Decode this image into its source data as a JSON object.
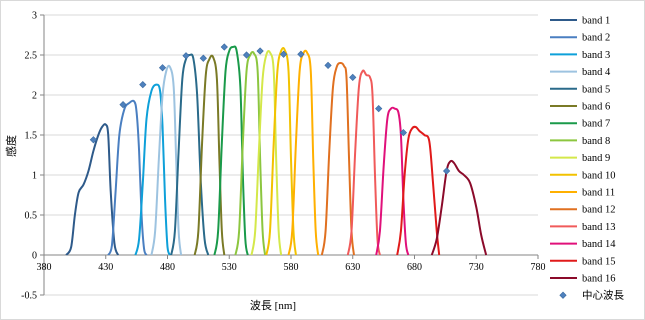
{
  "chart_data": {
    "type": "line",
    "xlabel": "波長 [nm]",
    "ylabel": "感度",
    "xlim": [
      380,
      780
    ],
    "ylim": [
      -0.5,
      3
    ],
    "x_ticks": [
      380,
      430,
      480,
      530,
      580,
      630,
      680,
      730,
      780
    ],
    "y_ticks": [
      -0.5,
      0,
      0.5,
      1,
      1.5,
      2,
      2.5,
      3
    ],
    "grid": "horizontal",
    "legend_position": "right",
    "series": [
      {
        "name": "band 1",
        "color": "#2e5a8a",
        "points": [
          [
            398,
            0
          ],
          [
            402,
            0.1
          ],
          [
            405,
            0.5
          ],
          [
            408,
            0.78
          ],
          [
            412,
            0.88
          ],
          [
            416,
            1.05
          ],
          [
            420,
            1.3
          ],
          [
            424,
            1.5
          ],
          [
            427,
            1.6
          ],
          [
            430,
            1.63
          ],
          [
            432,
            1.5
          ],
          [
            434,
            0.8
          ],
          [
            437,
            0.15
          ],
          [
            440,
            0
          ]
        ]
      },
      {
        "name": "band 2",
        "color": "#4a7fc1",
        "points": [
          [
            432,
            0
          ],
          [
            435,
            0.12
          ],
          [
            438,
            0.8
          ],
          [
            441,
            1.5
          ],
          [
            445,
            1.82
          ],
          [
            449,
            1.9
          ],
          [
            453,
            1.92
          ],
          [
            455,
            1.78
          ],
          [
            457,
            1.3
          ],
          [
            459,
            0.5
          ],
          [
            461,
            0.08
          ],
          [
            463,
            0
          ]
        ]
      },
      {
        "name": "band 3",
        "color": "#0ea0d9",
        "points": [
          [
            454,
            0
          ],
          [
            457,
            0.2
          ],
          [
            460,
            0.9
          ],
          [
            463,
            1.7
          ],
          [
            467,
            2.05
          ],
          [
            471,
            2.13
          ],
          [
            474,
            2.05
          ],
          [
            476,
            1.6
          ],
          [
            478,
            0.7
          ],
          [
            480,
            0.1
          ],
          [
            482,
            0
          ]
        ]
      },
      {
        "name": "band 4",
        "color": "#9dc3e0",
        "points": [
          [
            467,
            0
          ],
          [
            470,
            0.3
          ],
          [
            473,
            1.2
          ],
          [
            476,
            2.0
          ],
          [
            479,
            2.3
          ],
          [
            482,
            2.35
          ],
          [
            485,
            2.1
          ],
          [
            487,
            1.2
          ],
          [
            489,
            0.3
          ],
          [
            491,
            0
          ]
        ]
      },
      {
        "name": "band 5",
        "color": "#2a6a8a",
        "points": [
          [
            483,
            0
          ],
          [
            486,
            0.3
          ],
          [
            489,
            1.3
          ],
          [
            492,
            2.2
          ],
          [
            495,
            2.45
          ],
          [
            498,
            2.5
          ],
          [
            501,
            2.45
          ],
          [
            504,
            2.0
          ],
          [
            507,
            0.9
          ],
          [
            510,
            0.2
          ],
          [
            513,
            0
          ]
        ]
      },
      {
        "name": "band 6",
        "color": "#7a7a26",
        "points": [
          [
            502,
            0
          ],
          [
            505,
            0.3
          ],
          [
            508,
            1.4
          ],
          [
            511,
            2.25
          ],
          [
            514,
            2.45
          ],
          [
            517,
            2.47
          ],
          [
            520,
            2.2
          ],
          [
            522,
            1.2
          ],
          [
            524,
            0.3
          ],
          [
            526,
            0
          ]
        ]
      },
      {
        "name": "band 7",
        "color": "#1a9a4a",
        "points": [
          [
            518,
            0
          ],
          [
            521,
            0.3
          ],
          [
            524,
            1.4
          ],
          [
            527,
            2.3
          ],
          [
            530,
            2.55
          ],
          [
            533,
            2.6
          ],
          [
            536,
            2.55
          ],
          [
            539,
            2.1
          ],
          [
            541,
            1.0
          ],
          [
            543,
            0.2
          ],
          [
            545,
            0
          ]
        ]
      },
      {
        "name": "band 8",
        "color": "#8cc63f",
        "points": [
          [
            535,
            0
          ],
          [
            538,
            0.3
          ],
          [
            541,
            1.4
          ],
          [
            544,
            2.3
          ],
          [
            547,
            2.5
          ],
          [
            550,
            2.52
          ],
          [
            553,
            2.3
          ],
          [
            555,
            1.2
          ],
          [
            557,
            0.3
          ],
          [
            559,
            0
          ]
        ]
      },
      {
        "name": "band 9",
        "color": "#d4e84a",
        "points": [
          [
            548,
            0
          ],
          [
            551,
            0.3
          ],
          [
            554,
            1.3
          ],
          [
            557,
            2.2
          ],
          [
            560,
            2.5
          ],
          [
            563,
            2.53
          ],
          [
            566,
            2.3
          ],
          [
            568,
            1.2
          ],
          [
            570,
            0.3
          ],
          [
            572,
            0
          ]
        ]
      },
      {
        "name": "band 10",
        "color": "#f2c200",
        "points": [
          [
            560,
            0
          ],
          [
            563,
            0.3
          ],
          [
            566,
            1.4
          ],
          [
            569,
            2.3
          ],
          [
            572,
            2.55
          ],
          [
            575,
            2.56
          ],
          [
            578,
            2.3
          ],
          [
            580,
            1.2
          ],
          [
            582,
            0.3
          ],
          [
            584,
            0
          ]
        ]
      },
      {
        "name": "band 11",
        "color": "#ffb000",
        "points": [
          [
            578,
            0
          ],
          [
            581,
            0.3
          ],
          [
            584,
            1.4
          ],
          [
            587,
            2.3
          ],
          [
            590,
            2.52
          ],
          [
            593,
            2.53
          ],
          [
            596,
            2.3
          ],
          [
            598,
            1.2
          ],
          [
            600,
            0.3
          ],
          [
            602,
            0
          ]
        ]
      },
      {
        "name": "band 12",
        "color": "#e07020",
        "points": [
          [
            605,
            0
          ],
          [
            608,
            0.3
          ],
          [
            611,
            1.3
          ],
          [
            614,
            2.1
          ],
          [
            617,
            2.35
          ],
          [
            620,
            2.4
          ],
          [
            623,
            2.36
          ],
          [
            625,
            2.2
          ],
          [
            627,
            1.2
          ],
          [
            629,
            0.3
          ],
          [
            631,
            0
          ]
        ]
      },
      {
        "name": "band 13",
        "color": "#f05a5a",
        "points": [
          [
            626,
            0
          ],
          [
            629,
            0.3
          ],
          [
            632,
            1.3
          ],
          [
            635,
            2.1
          ],
          [
            638,
            2.3
          ],
          [
            641,
            2.25
          ],
          [
            644,
            2.22
          ],
          [
            646,
            2.0
          ],
          [
            648,
            1.0
          ],
          [
            650,
            0.2
          ],
          [
            652,
            0
          ]
        ]
      },
      {
        "name": "band 14",
        "color": "#e0107a",
        "points": [
          [
            649,
            0
          ],
          [
            652,
            0.3
          ],
          [
            655,
            1.1
          ],
          [
            658,
            1.7
          ],
          [
            661,
            1.83
          ],
          [
            664,
            1.83
          ],
          [
            667,
            1.78
          ],
          [
            669,
            1.5
          ],
          [
            671,
            0.7
          ],
          [
            673,
            0.15
          ],
          [
            675,
            0
          ]
        ]
      },
      {
        "name": "band 15",
        "color": "#e01a1a",
        "points": [
          [
            666,
            0
          ],
          [
            669,
            0.3
          ],
          [
            672,
            1.0
          ],
          [
            675,
            1.45
          ],
          [
            678,
            1.58
          ],
          [
            681,
            1.6
          ],
          [
            684,
            1.55
          ],
          [
            688,
            1.5
          ],
          [
            692,
            1.42
          ],
          [
            695,
            0.9
          ],
          [
            698,
            0.3
          ],
          [
            700,
            0
          ]
        ]
      },
      {
        "name": "band 16",
        "color": "#8b0a2a",
        "points": [
          [
            694,
            0
          ],
          [
            698,
            0.2
          ],
          [
            702,
            0.6
          ],
          [
            706,
            1.05
          ],
          [
            709,
            1.17
          ],
          [
            712,
            1.15
          ],
          [
            716,
            1.05
          ],
          [
            720,
            1.0
          ],
          [
            725,
            0.9
          ],
          [
            730,
            0.6
          ],
          [
            734,
            0.25
          ],
          [
            738,
            0
          ]
        ]
      }
    ],
    "center_wavelength": {
      "name": "中心波長",
      "color": "#4f81bd",
      "points": [
        [
          420,
          1.44
        ],
        [
          444,
          1.88
        ],
        [
          460,
          2.13
        ],
        [
          476,
          2.34
        ],
        [
          495,
          2.49
        ],
        [
          509,
          2.46
        ],
        [
          526,
          2.6
        ],
        [
          544,
          2.5
        ],
        [
          555,
          2.55
        ],
        [
          574,
          2.51
        ],
        [
          588,
          2.51
        ],
        [
          610,
          2.37
        ],
        [
          630,
          2.22
        ],
        [
          651,
          1.83
        ],
        [
          671,
          1.53
        ],
        [
          706,
          1.05
        ]
      ]
    }
  }
}
